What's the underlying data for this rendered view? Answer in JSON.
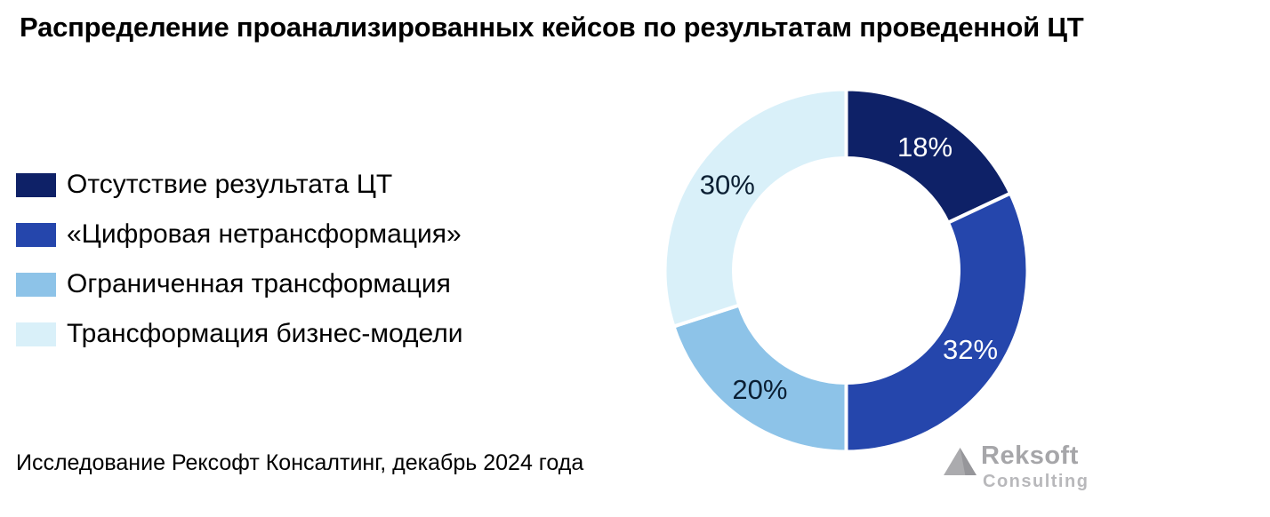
{
  "chart_data": {
    "type": "pie",
    "subtype": "donut",
    "title": "Распределение проанализированных кейсов по результатам проведенной ЦТ",
    "categories": [
      "Отсутствие результата ЦТ",
      "«Цифровая нетрансформация»",
      "Ограниченная трансформация",
      "Трансформация бизнес-модели"
    ],
    "values": [
      18,
      32,
      20,
      30
    ],
    "unit": "%",
    "labels": [
      "18%",
      "32%",
      "20%",
      "30%"
    ],
    "colors": [
      "#0E2167",
      "#2546AC",
      "#8DC3E8",
      "#D9F0F9"
    ],
    "label_colors": [
      "#FFFFFF",
      "#FFFFFF",
      "#0B1F33",
      "#0B1F33"
    ],
    "start_angle_deg": 0,
    "direction": "clockwise",
    "inner_radius_ratio": 0.62,
    "slice_gap_color": "#FFFFFF",
    "legend_position": "left",
    "background": "#FFFFFF"
  },
  "footer": {
    "source": "Исследование Рексофт Консалтинг, декабрь 2024 года"
  },
  "logo": {
    "name": "Reksoft",
    "subtitle": "Consulting",
    "name_color": "#A6A6A9",
    "subtitle_color": "#B8B8BB",
    "triangle_color": "#ABABAE",
    "triangle_shade_color": "#96969A"
  }
}
